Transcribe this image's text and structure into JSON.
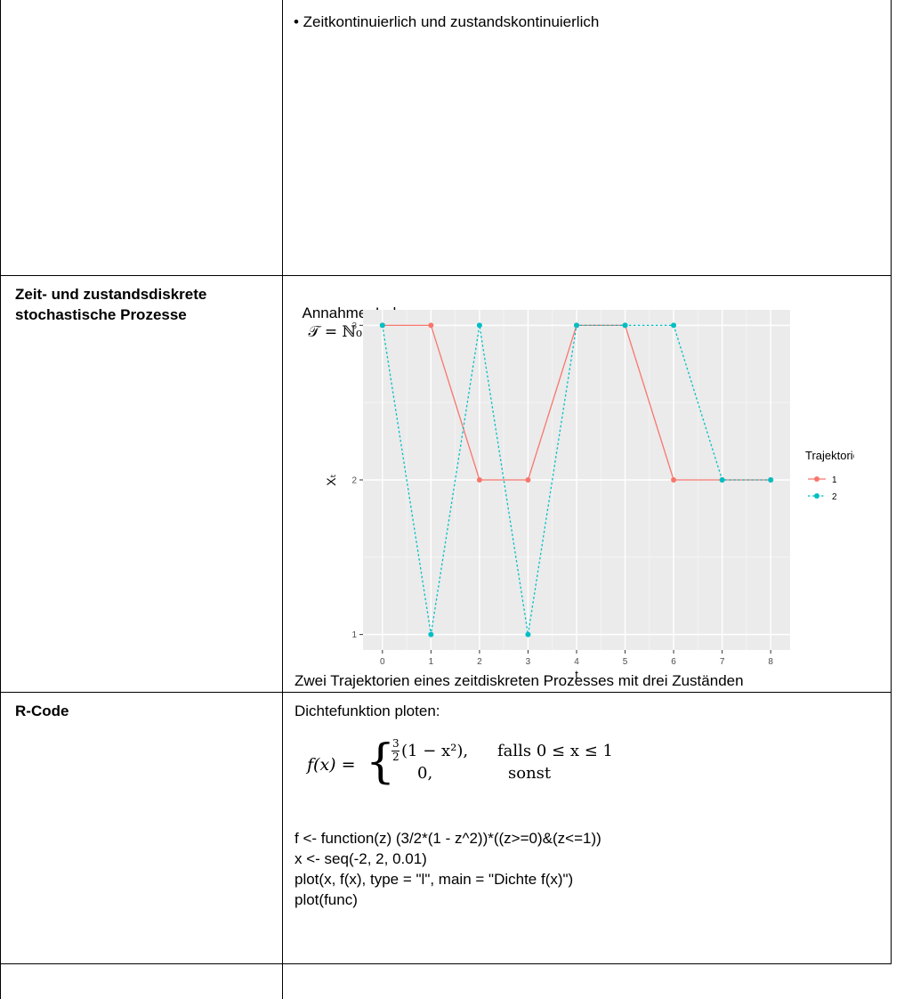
{
  "rows": {
    "r1": {
      "right_bullet": "• Zeitkontinuierlich und zustandskontinuierlich"
    },
    "r2": {
      "left_line1": "Zeit- und zustandsdiskrete",
      "left_line2": "stochastische Prozesse",
      "annahme_prefix": "Annahme: Indexmenge",
      "annahme_math": "𝒯 = ℕ₀",
      "caption": "Zwei Trajektorien eines zeitdiskreten Prozesses mit drei Zuständen"
    },
    "r3": {
      "left": "R-Code",
      "intro": "Dichtefunktion ploten:",
      "formula": {
        "lhs": "f(x) =",
        "case1_expr": "(1 − x²),",
        "case1_frac_num": "3",
        "case1_frac_den": "2",
        "case1_cond": "falls 0 ≤ x ≤ 1",
        "case2_expr": "0,",
        "case2_cond": "sonst"
      },
      "code": [
        "f <- function(z) (3/2*(1 - z^2))*((z>=0)&(z<=1))",
        "x <- seq(-2, 2, 0.01)",
        "plot(x, f(x), type = \"l\", main = \"Dichte f(x)\")",
        "plot(func)"
      ]
    }
  },
  "chart_data": {
    "type": "line",
    "xlabel": "t",
    "ylabel": "Xₜ",
    "x": [
      0,
      1,
      2,
      3,
      4,
      5,
      6,
      7,
      8
    ],
    "xticks": [
      "0",
      "1",
      "2",
      "3",
      "4",
      "5",
      "6",
      "7",
      "8"
    ],
    "yticks": [
      "1",
      "2",
      "3"
    ],
    "xlim": [
      -0.4,
      8.4
    ],
    "ylim": [
      0.9,
      3.1
    ],
    "grid": true,
    "legend_title": "Trajektorie",
    "legend_position": "right",
    "series": [
      {
        "name": "1",
        "values": [
          3,
          3,
          2,
          2,
          3,
          3,
          2,
          2,
          2
        ],
        "color": "#F8766D",
        "dash": "solid"
      },
      {
        "name": "2",
        "values": [
          3,
          1,
          3,
          1,
          3,
          3,
          3,
          2,
          2
        ],
        "color": "#00BFC4",
        "dash": "dotted"
      }
    ],
    "panel_color": "#EBEBEB"
  }
}
